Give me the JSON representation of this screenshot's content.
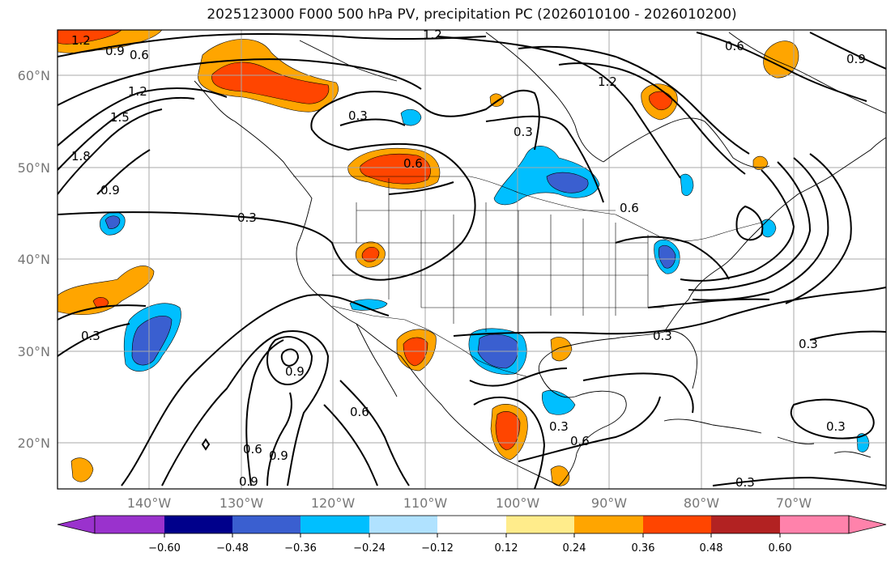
{
  "title": "2025123000 F000 500 hPa PV, precipitation PC (2026010100 - 2026010200)",
  "colors": {
    "frame": "#000000",
    "grid": "#a8a8a8",
    "land": "#ffffff",
    "ocean": "#ffffff"
  },
  "map": {
    "lon_range": [
      -150,
      -60
    ],
    "lat_range": [
      15,
      65
    ],
    "lat_ticks": [
      "20°N",
      "30°N",
      "40°N",
      "50°N",
      "60°N"
    ],
    "lon_ticks": [
      "140°W",
      "130°W",
      "120°W",
      "110°W",
      "100°W",
      "90°W",
      "80°W",
      "70°W"
    ],
    "grid": true
  },
  "contour_labels": [
    "1.2",
    "0.9",
    "0.6",
    "1.2",
    "1.5",
    "1.8",
    "0.9",
    "0.3",
    "0.3",
    "0.6",
    "0.3",
    "1.2",
    "0.6",
    "0.9",
    "1.2",
    "0.6",
    "0.3",
    "0.3",
    "0.3",
    "0.9",
    "0.6",
    "0.6",
    "0.9",
    "0.9",
    "0.3",
    "0.6",
    "0.3",
    "0.3"
  ],
  "colorbar": {
    "ticks": [
      "−0.60",
      "−0.48",
      "−0.36",
      "−0.24",
      "−0.12",
      "0.12",
      "0.24",
      "0.36",
      "0.48",
      "0.60"
    ],
    "colors": [
      "#9a32cd",
      "#00008b",
      "#3a5fd0",
      "#00bfff",
      "#b0e2ff",
      "#ffffff",
      "#ffec8b",
      "#ffa500",
      "#ff4500",
      "#b22222",
      "#ff82ab"
    ],
    "extend": "both"
  }
}
